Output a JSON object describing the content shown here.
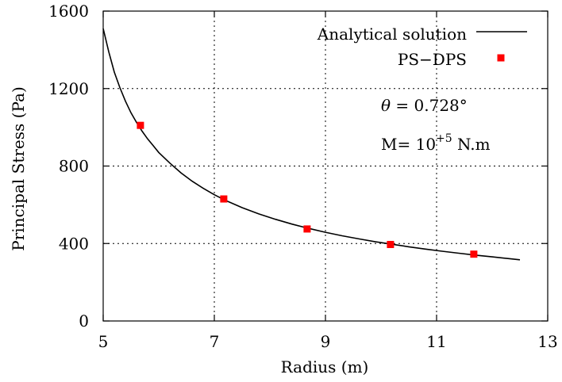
{
  "chart_data": {
    "type": "line",
    "title": "",
    "xlabel": "Radius (m)",
    "ylabel": "Principal Stress (Pa)",
    "xlim": [
      5,
      13
    ],
    "ylim": [
      0,
      1600
    ],
    "x_ticks": [
      5,
      7,
      9,
      11,
      13
    ],
    "y_ticks": [
      0,
      400,
      800,
      1200,
      1600
    ],
    "x_tick_labels": [
      "5",
      "7",
      "9",
      "11",
      "13"
    ],
    "y_tick_labels": [
      "0",
      "400",
      "800",
      "1200",
      "1600"
    ],
    "grid": true,
    "legend_position": "top-right",
    "annotations": {
      "theta_symbol": "θ",
      "theta_rest": " = 0.728°",
      "moment_prefix": "M= 10",
      "moment_exponent": "+5",
      "moment_suffix": " N.m"
    },
    "series": [
      {
        "name": "Analytical solution",
        "style": "line",
        "color": "#000000",
        "x": [
          5.0,
          5.1,
          5.2,
          5.3,
          5.4,
          5.5,
          5.6,
          5.7,
          5.8,
          5.9,
          6.0,
          6.2,
          6.4,
          6.6,
          6.8,
          7.0,
          7.2,
          7.5,
          7.8,
          8.1,
          8.4,
          8.7,
          9.0,
          9.3,
          9.6,
          9.9,
          10.2,
          10.5,
          10.8,
          11.1,
          11.4,
          11.7,
          12.0,
          12.3,
          12.5
        ],
        "y": [
          1510,
          1390,
          1285,
          1205,
          1135,
          1075,
          1025,
          980,
          940,
          905,
          870,
          815,
          765,
          722,
          685,
          652,
          623,
          585,
          553,
          525,
          500,
          478,
          458,
          440,
          424,
          409,
          396,
          383,
          371,
          360,
          350,
          340,
          331,
          322,
          316
        ]
      },
      {
        "name": "PS−DPS",
        "style": "markers",
        "color": "#ff0000",
        "x": [
          5.67,
          7.17,
          8.67,
          10.17,
          11.67
        ],
        "y": [
          1010,
          630,
          475,
          395,
          345
        ]
      }
    ]
  }
}
